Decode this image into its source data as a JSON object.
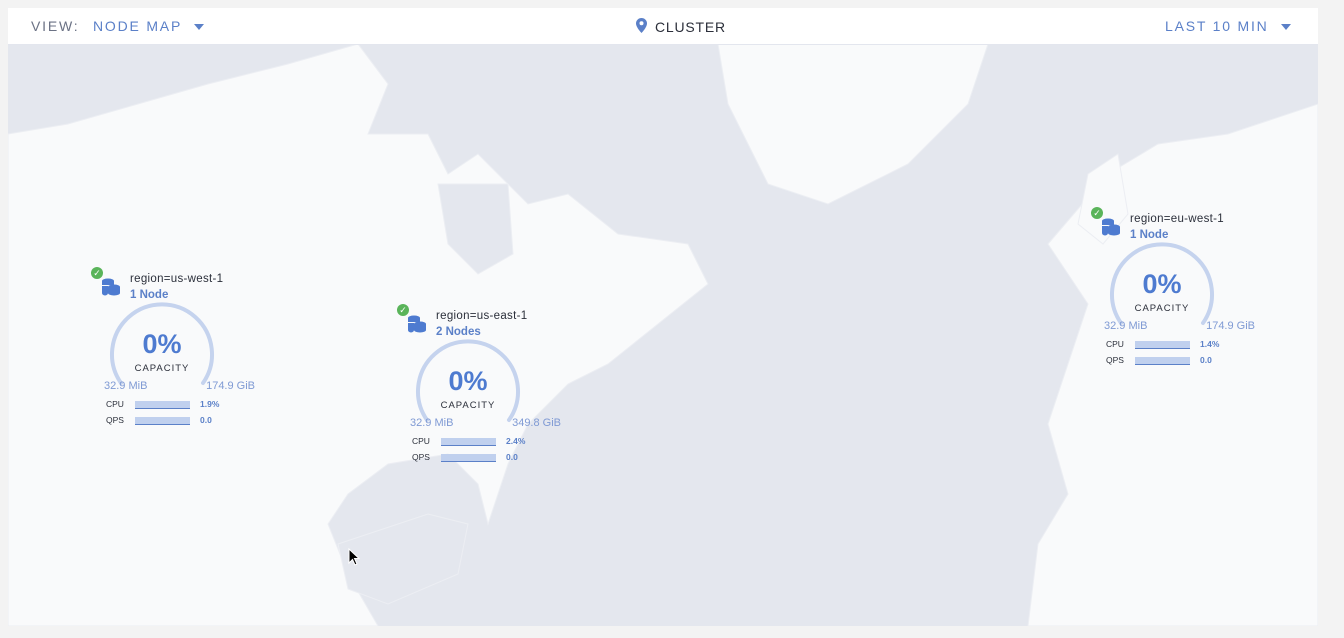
{
  "header": {
    "view_label": "VIEW:",
    "view_value": "NODE MAP",
    "title": "CLUSTER",
    "time_range": "LAST 10 MIN"
  },
  "colors": {
    "accent": "#5b80c8",
    "healthy": "#5ab45a",
    "water": "#e4e7ee",
    "land": "#ffffff"
  },
  "regions": [
    {
      "name": "region=us-west-1",
      "nodes": "1 Node",
      "capacity_pct": "0%",
      "capacity_label": "CAPACITY",
      "used": "32.9 MiB",
      "total": "174.9 GiB",
      "cpu_label": "CPU",
      "cpu": "1.9%",
      "qps_label": "QPS",
      "qps": "0.0",
      "status": "healthy"
    },
    {
      "name": "region=us-east-1",
      "nodes": "2 Nodes",
      "capacity_pct": "0%",
      "capacity_label": "CAPACITY",
      "used": "32.9 MiB",
      "total": "349.8 GiB",
      "cpu_label": "CPU",
      "cpu": "2.4%",
      "qps_label": "QPS",
      "qps": "0.0",
      "status": "healthy"
    },
    {
      "name": "region=eu-west-1",
      "nodes": "1 Node",
      "capacity_pct": "0%",
      "capacity_label": "CAPACITY",
      "used": "32.9 MiB",
      "total": "174.9 GiB",
      "cpu_label": "CPU",
      "cpu": "1.4%",
      "qps_label": "QPS",
      "qps": "0.0",
      "status": "healthy"
    }
  ]
}
